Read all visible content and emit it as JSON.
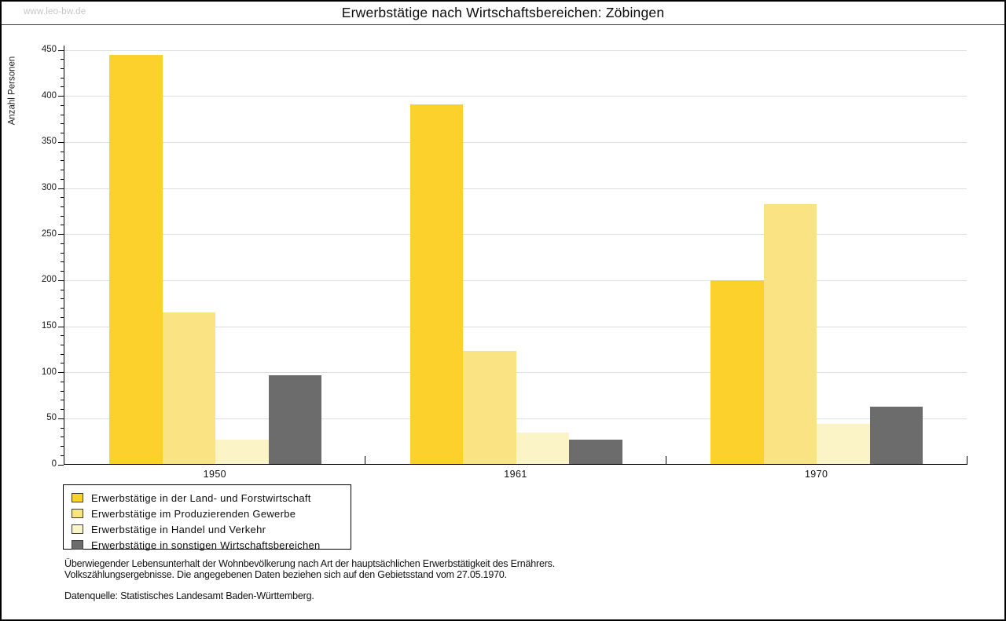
{
  "watermark": "www.leo-bw.de",
  "title": "Erwerbstätige nach Wirtschaftsbereichen: Zöbingen",
  "chart_data": {
    "type": "bar",
    "title": "Erwerbstätige nach Wirtschaftsbereichen: Zöbingen",
    "xlabel": "",
    "ylabel": "Anzahl Personen",
    "categories": [
      "1950",
      "1961",
      "1970"
    ],
    "series": [
      {
        "name": "Erwerbstätige in der Land- und Forstwirtschaft",
        "color": "#FCD12B",
        "values": [
          445,
          391,
          200
        ]
      },
      {
        "name": "Erwerbstätige im Produzierenden Gewerbe",
        "color": "#FAE383",
        "values": [
          165,
          124,
          283
        ]
      },
      {
        "name": "Erwerbstätige in Handel und Verkehr",
        "color": "#FBF4C6",
        "values": [
          27,
          35,
          44
        ]
      },
      {
        "name": "Erwerbstätige in sonstigen Wirtschaftsbereichen",
        "color": "#6C6C6C",
        "values": [
          97,
          27,
          63
        ]
      }
    ],
    "ylim": [
      0,
      450
    ],
    "ytick_step": 50,
    "yminor_step": 10,
    "grid": "horizontal-major",
    "legend_position": "bottom-left"
  },
  "colors": {
    "grid": "#DEDEDE",
    "axis": "#000000",
    "watermark": "#C6C6C6"
  },
  "footer": {
    "line1": "Überwiegender Lebensunterhalt der Wohnbevölkerung nach Art der hauptsächlichen Erwerbstätigkeit des Ernährers.",
    "line2": "Volkszählungsergebnisse. Die angegebenen Daten beziehen sich auf den Gebietsstand vom 27.05.1970.",
    "source": "Datenquelle: Statistisches Landesamt Baden-Württemberg."
  }
}
